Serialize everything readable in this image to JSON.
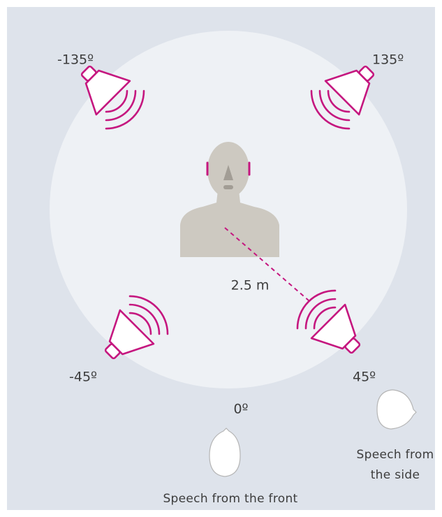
{
  "angles": {
    "rear_left": "-135º",
    "rear_right": "135º",
    "front_left": "-45º",
    "front_right": "45º",
    "front": "0º"
  },
  "distance": "2.5 m",
  "captions": {
    "front": "Speech from the front",
    "side": [
      "Speech from",
      "the side"
    ]
  }
}
